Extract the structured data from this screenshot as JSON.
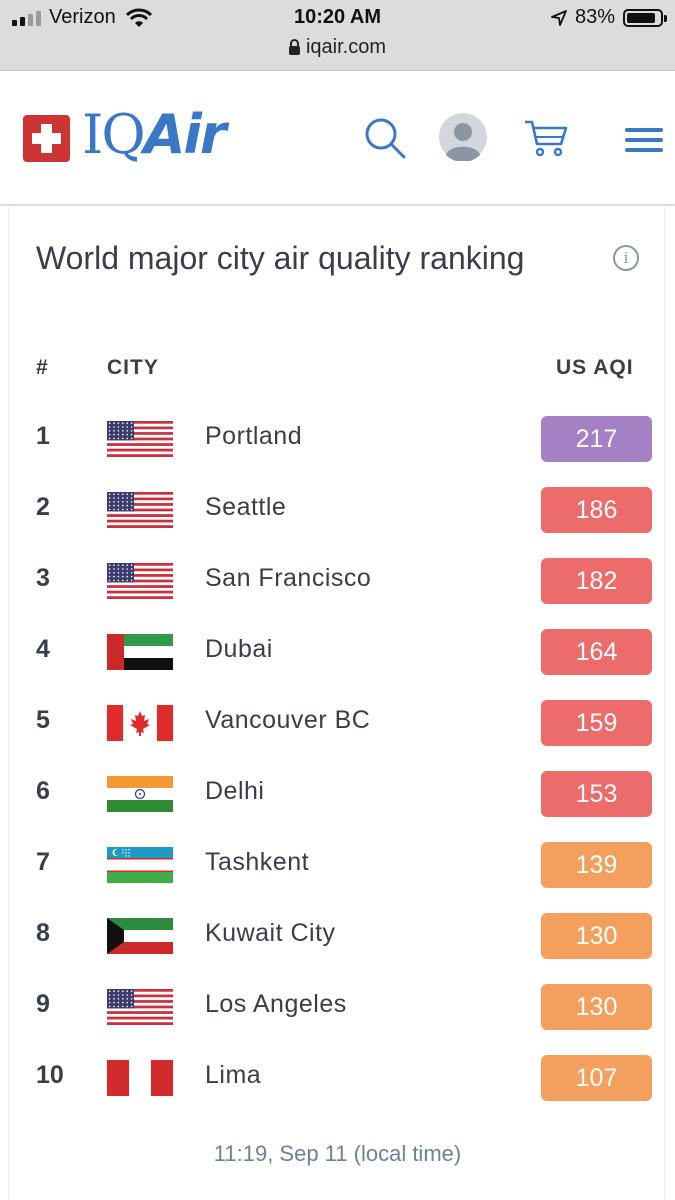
{
  "status_bar": {
    "carrier": "Verizon",
    "time": "10:20 AM",
    "battery": "83%",
    "url": "iqair.com"
  },
  "header": {
    "logo_iq": "IQ",
    "logo_air": "Air",
    "icons": [
      "search-icon",
      "user-avatar-icon",
      "cart-icon",
      "menu-icon"
    ]
  },
  "ranking": {
    "title": "World major city air quality ranking",
    "col_rank": "#",
    "col_city": "CITY",
    "col_aqi": "US AQI",
    "rows": [
      {
        "rank": "1",
        "city": "Portland",
        "aqi": "217",
        "flag": "us",
        "color": "#a680c4"
      },
      {
        "rank": "2",
        "city": "Seattle",
        "aqi": "186",
        "flag": "us",
        "color": "#ec6b6b"
      },
      {
        "rank": "3",
        "city": "San Francisco",
        "aqi": "182",
        "flag": "us",
        "color": "#ec6b6b"
      },
      {
        "rank": "4",
        "city": "Dubai",
        "aqi": "164",
        "flag": "uae",
        "color": "#ec6b6b"
      },
      {
        "rank": "5",
        "city": "Vancouver BC",
        "aqi": "159",
        "flag": "canada",
        "color": "#ec6b6b"
      },
      {
        "rank": "6",
        "city": "Delhi",
        "aqi": "153",
        "flag": "india",
        "color": "#ec6b6b"
      },
      {
        "rank": "7",
        "city": "Tashkent",
        "aqi": "139",
        "flag": "uzbekistan",
        "color": "#f3a05f"
      },
      {
        "rank": "8",
        "city": "Kuwait City",
        "aqi": "130",
        "flag": "kuwait",
        "color": "#f3a05f"
      },
      {
        "rank": "9",
        "city": "Los Angeles",
        "aqi": "130",
        "flag": "us",
        "color": "#f3a05f"
      },
      {
        "rank": "10",
        "city": "Lima",
        "aqi": "107",
        "flag": "peru",
        "color": "#f3a05f"
      }
    ],
    "updated": "11:19, Sep 11 (local time)"
  }
}
